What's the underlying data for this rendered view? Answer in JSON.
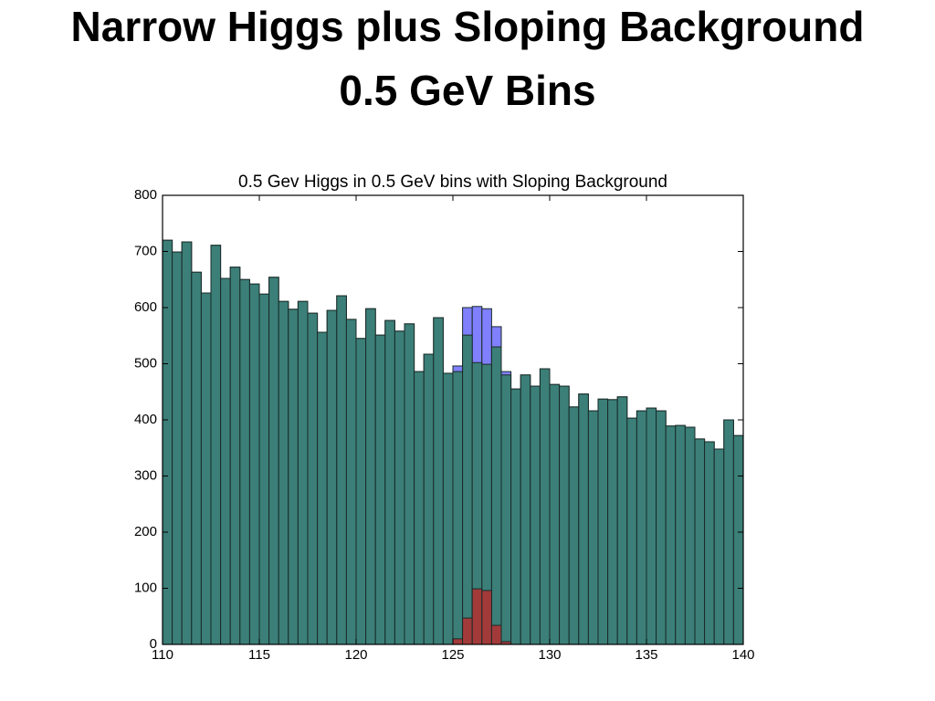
{
  "slide": {
    "title": [
      "Narrow Higgs plus Sloping Background",
      "0.5 GeV Bins"
    ]
  },
  "chart_data": {
    "type": "histogram",
    "title": "0.5 Gev Higgs in 0.5 GeV bins with Sloping Background",
    "bins": [
      110,
      110.5,
      111,
      111.5,
      112,
      112.5,
      113,
      113.5,
      114,
      114.5,
      115,
      115.5,
      116,
      116.5,
      117,
      117.5,
      118,
      118.5,
      119,
      119.5,
      120,
      120.5,
      121,
      121.5,
      122,
      122.5,
      123,
      123.5,
      124,
      124.5,
      125,
      125.5,
      126,
      126.5,
      127,
      127.5,
      128,
      128.5,
      129,
      129.5,
      130,
      130.5,
      131,
      131.5,
      132,
      132.5,
      133,
      133.5,
      134,
      134.5,
      135,
      135.5,
      136,
      136.5,
      137,
      137.5,
      138,
      138.5,
      139,
      139.5,
      140
    ],
    "series": [
      {
        "color": "#8080ff",
        "values": [
          720,
          699,
          717,
          663,
          626,
          711,
          652,
          672,
          650,
          642,
          624,
          654,
          611,
          597,
          611,
          590,
          556,
          595,
          621,
          579,
          545,
          598,
          551,
          577,
          558,
          571,
          486,
          517,
          582,
          483,
          496,
          600,
          602,
          598,
          566,
          486,
          455,
          480,
          460,
          491,
          463,
          460,
          423,
          446,
          416,
          437,
          436,
          441,
          403,
          416,
          421,
          416,
          389,
          390,
          387,
          366,
          361,
          348,
          400,
          372
        ]
      },
      {
        "color": "#3b7f78",
        "values": [
          720,
          699,
          717,
          663,
          626,
          711,
          652,
          672,
          650,
          642,
          624,
          654,
          611,
          597,
          611,
          590,
          556,
          595,
          621,
          579,
          545,
          598,
          551,
          577,
          558,
          571,
          486,
          517,
          582,
          483,
          486,
          551,
          502,
          499,
          530,
          480,
          455,
          480,
          460,
          491,
          463,
          460,
          423,
          446,
          416,
          437,
          436,
          441,
          403,
          416,
          421,
          416,
          389,
          390,
          387,
          366,
          361,
          348,
          400,
          372
        ]
      },
      {
        "color": "#a33a3a",
        "values": [
          0,
          0,
          0,
          0,
          0,
          0,
          0,
          0,
          0,
          0,
          0,
          0,
          0,
          0,
          0,
          0,
          0,
          0,
          0,
          0,
          0,
          0,
          0,
          0,
          0,
          0,
          0,
          0,
          0,
          0,
          10,
          47,
          99,
          96,
          34,
          5,
          0,
          0,
          0,
          0,
          0,
          0,
          0,
          0,
          0,
          0,
          0,
          0,
          0,
          0,
          0,
          0,
          0,
          0,
          0,
          0,
          0,
          0,
          0,
          0
        ]
      }
    ],
    "xlim": [
      110,
      140
    ],
    "ylim": [
      0,
      800
    ],
    "xticks": [
      110,
      115,
      120,
      125,
      130,
      135,
      140
    ],
    "yticks": [
      0,
      100,
      200,
      300,
      400,
      500,
      600,
      700,
      800
    ]
  }
}
